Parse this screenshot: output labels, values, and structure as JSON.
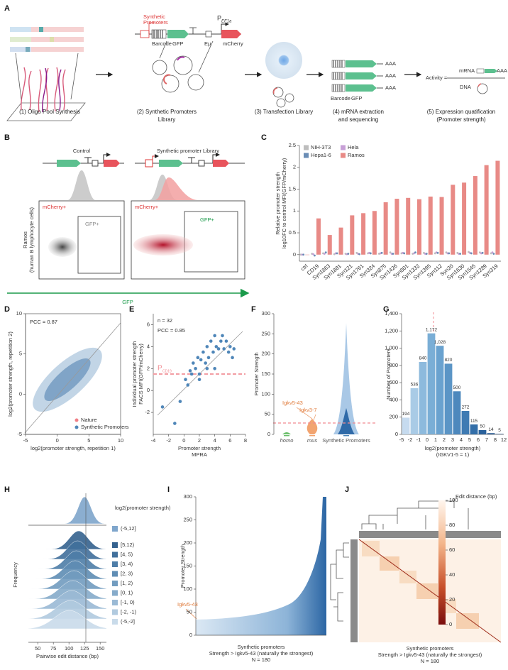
{
  "figure": {
    "panel_labels": [
      "A",
      "B",
      "C",
      "D",
      "E",
      "F",
      "G",
      "H",
      "I",
      "J"
    ],
    "a": {
      "steps": [
        [
          "(1) Oligo Pool Synthesis"
        ],
        [
          "(2)  Synthetic Promoters",
          "Library"
        ],
        [
          "(3) Transfection Library"
        ],
        [
          "(4) mRNA extraction",
          "and sequencing"
        ],
        [
          "(5) Expression quatification",
          "(Promoter strength)"
        ]
      ],
      "construct": {
        "promoters": [
          "Synthetic",
          "Promoters"
        ],
        "barcode": "Barcode",
        "gfp": "GFP",
        "enhancer": "Eμ",
        "mcherry": "mCherry",
        "promoter": "P",
        "promoter_sub": "EF1a"
      },
      "tail": "AAA",
      "mrna_labels": [
        "Barcode",
        "GFP"
      ],
      "activity": "Activity =",
      "mrna": "mRNA",
      "dna": "DNA"
    },
    "b": {
      "control": "Control",
      "library": "Synthetic promoter Library",
      "cell": "Ramos",
      "cell_note": "(human B lymphocyte cells)",
      "mcherry_gate": "mCherry+",
      "gfp_gate": "GFP+",
      "x_label": "GFP"
    }
  },
  "chart_data": [
    {
      "type": "bar",
      "y_label": [
        "Relative promoter strength",
        "log10FC to control MFI(GFP/mCherry)"
      ],
      "categories": [
        "ctrl",
        "CD19",
        "Syn1863",
        "Syn1881",
        "Syn121",
        "Syn1761",
        "Syn324",
        "Syn875",
        "Syn1426",
        "Syn801",
        "Syn1332",
        "Syn1395",
        "Syn112",
        "Syn20",
        "Syn1630",
        "Syn1545",
        "Syn1289",
        "Syn319"
      ],
      "series": [
        {
          "name": "NIH-3T3",
          "color": "#bdbdbd",
          "values": [
            0,
            0.02,
            0.03,
            0.01,
            0.02,
            0.04,
            0.03,
            0.02,
            0.05,
            0.03,
            0.02,
            0.04,
            0.03,
            0.05,
            0.04,
            0.06,
            0.05,
            0.03
          ]
        },
        {
          "name": "Hela",
          "color": "#c79fd6",
          "values": [
            0,
            0.01,
            0.02,
            0.03,
            0.01,
            0.02,
            0.04,
            0.03,
            0.02,
            0.04,
            0.03,
            0.02,
            0.05,
            0.03,
            0.02,
            0.04,
            0.03,
            0.05
          ]
        },
        {
          "name": "Hepa1-6",
          "color": "#6a8db5",
          "values": [
            0,
            -0.02,
            0.05,
            0.03,
            0.02,
            0.01,
            0.03,
            0.04,
            0.02,
            0.03,
            0.05,
            0.02,
            0.04,
            0.03,
            0.02,
            0.03,
            0.04,
            0.02
          ]
        },
        {
          "name": "Ramos",
          "color": "#e88a86",
          "values": [
            0,
            0.83,
            0.45,
            0.62,
            0.9,
            0.95,
            1.0,
            1.2,
            1.28,
            1.3,
            1.27,
            1.33,
            1.32,
            1.6,
            1.65,
            1.8,
            2.05,
            2.15
          ]
        }
      ],
      "ylim": [
        -0.15,
        2.5
      ],
      "yticks": [
        0,
        0.5,
        1,
        1.5,
        2,
        2.5
      ]
    },
    {
      "type": "scatter",
      "x_label": "log2(promoter strength, repetition 1)",
      "y_label": "log2(promoter strength, repetition 2)",
      "annotation": "PCC = 0.87",
      "series": [
        {
          "name": "Nature",
          "color": "#f07f86"
        },
        {
          "name": "Synthetic Promoters",
          "color": "#4f86b8"
        }
      ],
      "xlim": [
        -5,
        10
      ],
      "xticks": [
        -5,
        0,
        5,
        10
      ],
      "ylim": [
        -5,
        10
      ],
      "yticks": [
        -5,
        0,
        5,
        10
      ]
    },
    {
      "type": "scatter",
      "x_label": [
        "Promoter strength",
        "MPRA"
      ],
      "y_label": [
        "Individual promoter strength",
        "FACS MFI(GFP/mCherry)"
      ],
      "annotations": [
        "n = 32",
        "PCC = 0.85"
      ],
      "ref_line": {
        "value": 1.5,
        "label": "P",
        "sub": "CD19"
      },
      "color": "#4f86b8",
      "x": [
        -2.8,
        -1.2,
        -0.5,
        0.2,
        0.5,
        0.8,
        1.0,
        1.2,
        1.5,
        1.8,
        2.0,
        2.2,
        2.5,
        2.8,
        3.0,
        3.2,
        3.5,
        3.8,
        4.0,
        4.2,
        4.5,
        4.8,
        5.0,
        5.2,
        5.5,
        5.8,
        6.0,
        6.3,
        6.5,
        4.0,
        3.0,
        2.0
      ],
      "values": [
        -1.5,
        -3.0,
        -1.0,
        1.0,
        0.5,
        1.8,
        1.5,
        2.5,
        2.0,
        3.0,
        1.0,
        2.8,
        3.5,
        2.5,
        4.0,
        3.0,
        4.5,
        3.5,
        5.0,
        4.0,
        3.8,
        4.5,
        5.0,
        3.8,
        4.5,
        3.5,
        4.0,
        3.0,
        3.8,
        2.0,
        2.0,
        1.5
      ],
      "xlim": [
        -4,
        8
      ],
      "xticks": [
        -4,
        -2,
        0,
        2,
        4,
        6,
        8
      ],
      "ylim": [
        -4,
        7
      ],
      "yticks": [
        -2,
        0,
        2,
        4,
        6
      ]
    },
    {
      "type": "violin",
      "y_label": "Promoter Strength",
      "categories": [
        "homo",
        "mus",
        "Synthetic Promoters"
      ],
      "colors": [
        "#6cbf6c",
        "#f2a470",
        "#4f86b8"
      ],
      "annotations": [
        "Igkv5-43",
        "Igkv3-7"
      ],
      "ylim": [
        0,
        300
      ],
      "yticks": [
        0,
        50,
        100,
        150,
        200,
        250,
        300
      ]
    },
    {
      "type": "histogram",
      "y_label": "Number of Promoters",
      "x_label": [
        "log2(promoter strength)",
        "(IGKV1-5 = 1)"
      ],
      "bins": [
        -5,
        -2,
        -1,
        0,
        1,
        2,
        3,
        4,
        5,
        6,
        7,
        8,
        12
      ],
      "values": [
        194,
        536,
        840,
        1172,
        1028,
        820,
        500,
        272,
        115,
        50,
        14,
        5
      ],
      "value_labels": [
        "194",
        "536",
        "840",
        "1,172",
        "1,028",
        "820",
        "500",
        "272",
        "115",
        "50",
        "14",
        "5"
      ],
      "colors": [
        "#c6dbef",
        "#a9cbe6",
        "#8dbadd",
        "#7aaed6",
        "#6aa2cf",
        "#5b95c6",
        "#4d88bd",
        "#3f7bb3",
        "#336ea8",
        "#2a629c",
        "#22568f",
        "#1b4a82"
      ],
      "ylim": [
        0,
        1400
      ],
      "yticks": [
        0,
        200,
        400,
        600,
        800,
        {
          "value": 1000,
          "label": "1,000"
        },
        {
          "value": 1200,
          "label": "1,200"
        },
        {
          "value": 1400,
          "label": "1,400"
        }
      ]
    },
    {
      "type": "ridgeline",
      "title": "log2(promoter strength)",
      "y_label": "Frequency",
      "x_label": "Pairwise edit distance (bp)",
      "categories": [
        "(-5,12]",
        "[5,12)",
        "[4, 5)",
        "[3, 4)",
        "[2, 3)",
        "[1, 2)",
        "[0, 1)",
        "[-1, 0)",
        "[-2, -1)",
        "(-5,-2]"
      ],
      "colors": [
        "#7fa6cc",
        "#35628f",
        "#41709c",
        "#4e7ea8",
        "#5f8db4",
        "#729cbf",
        "#86abca",
        "#9bbad5",
        "#b1cadf",
        "#c9dbea"
      ],
      "xlim": [
        35,
        160
      ],
      "xticks": [
        50,
        75,
        100,
        125,
        150
      ]
    },
    {
      "type": "area",
      "y_label": "Promoter Strength",
      "annotation": "Igkv5-43",
      "x_label": [
        "Synthetic promoters",
        "Strength > Igkv5-43 (naturally the strongest)",
        "N = 180"
      ],
      "ylim": [
        0,
        300
      ],
      "yticks": [
        0,
        50,
        100,
        150,
        200,
        250,
        300
      ]
    },
    {
      "type": "heatmap",
      "legend_title": "Edit distance (bp)",
      "x_label": [
        "Synthetic promoters",
        "Strength > Igkv5-43 (naturally the strongest)",
        "N = 180"
      ],
      "clim": [
        0,
        100
      ],
      "cticks": [
        0,
        20,
        40,
        60,
        80,
        100
      ]
    }
  ]
}
